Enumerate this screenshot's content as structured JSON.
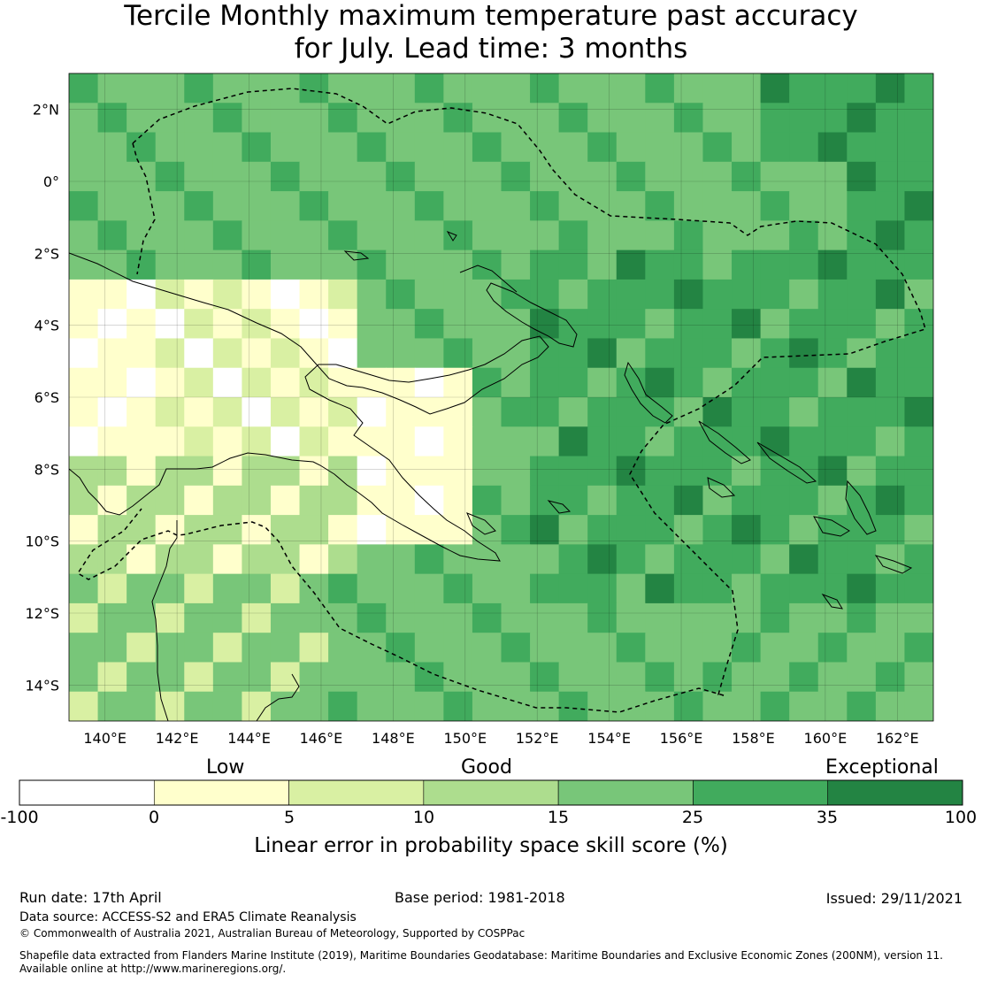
{
  "title": {
    "line1": "Tercile Monthly maximum temperature past accuracy",
    "line2": "for July. Lead time: 3 months"
  },
  "map": {
    "lon_range": [
      139,
      163
    ],
    "lat_range": [
      -15,
      3
    ],
    "lon_ticks": [
      "140°E",
      "142°E",
      "144°E",
      "146°E",
      "148°E",
      "150°E",
      "152°E",
      "154°E",
      "156°E",
      "158°E",
      "160°E",
      "162°E"
    ],
    "lat_ticks": [
      "2°N",
      "0°",
      "2°S",
      "4°S",
      "6°S",
      "8°S",
      "10°S",
      "12°S",
      "14°S"
    ],
    "grid": "on"
  },
  "colorbar": {
    "categories": [
      "Low",
      "Good",
      "Exceptional"
    ],
    "boundaries": [
      "-100",
      "0",
      "5",
      "10",
      "15",
      "25",
      "35",
      "100"
    ],
    "colors": [
      "#ffffff",
      "#ffffcc",
      "#d9f0a3",
      "#addd8e",
      "#78c679",
      "#41ab5d",
      "#238443"
    ],
    "label": "Linear error in probability space skill score (%)"
  },
  "footer": {
    "run_date": "Run date: 17th April",
    "base_period": "Base period: 1981-2018",
    "issued": "Issued: 29/11/2021",
    "data_source": "Data source: ACCESS-S2 and ERA5 Climate Reanalysis",
    "copyright": "© Commonwealth of Australia 2021, Australian Bureau of Meteorology, Supported by COSPPac",
    "shapefile_line1": "Shapefile data extracted from Flanders Marine Institute (2019), Maritime Boundaries Geodatabase: Maritime Boundaries and Exclusive Economic Zones (200NM), version 11.",
    "shapefile_line2": "Available online at http://www.marineregions.org/."
  }
}
